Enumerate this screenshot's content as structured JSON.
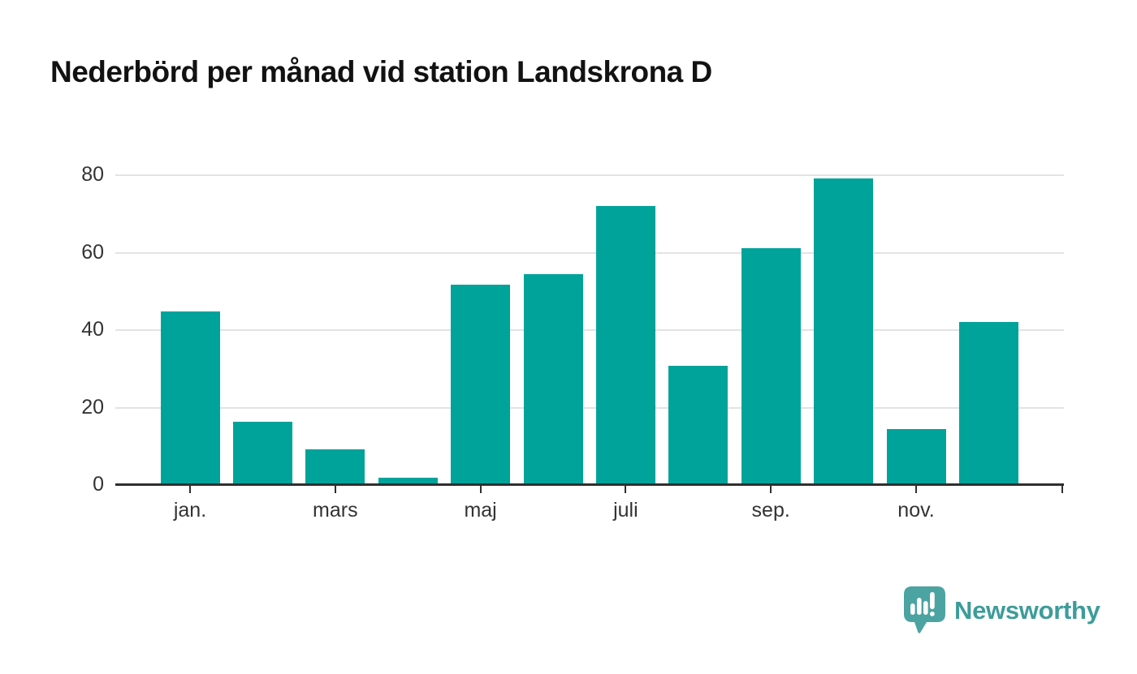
{
  "title": "Nederbörd per månad vid station Landskrona D",
  "branding": {
    "logo_text": "Newsworthy",
    "logo_icon": "newsworthy-bar-chart-pin-icon"
  },
  "colors": {
    "bar": "#00a39a",
    "axis": "#2f2f2f",
    "gridline": "#e3e3e3",
    "tick_label": "#333333",
    "title": "#121212",
    "brand_text": "#3d9c9a",
    "brand_icon": "#4ba3a2"
  },
  "chart_data": {
    "type": "bar",
    "title": "Nederbörd per månad vid station Landskrona D",
    "categories": [
      "jan.",
      "",
      "mars",
      "",
      "maj",
      "",
      "juli",
      "",
      "sep.",
      "",
      "nov.",
      ""
    ],
    "values": [
      44.8,
      16.4,
      9.2,
      1.8,
      51.7,
      54.5,
      72.1,
      30.7,
      61.1,
      79.1,
      14.5,
      42.1
    ],
    "series_name": "Nederbörd",
    "xlabel": "",
    "ylabel": "",
    "ylim": [
      0,
      80
    ],
    "yticks": [
      0,
      20,
      40,
      60,
      80
    ],
    "x_tick_labels": [
      "jan.",
      "mars",
      "maj",
      "juli",
      "sep.",
      "nov."
    ],
    "x_tick_indices": [
      0,
      2,
      4,
      6,
      8,
      10
    ],
    "grid": "horizontal",
    "legend": "none"
  }
}
